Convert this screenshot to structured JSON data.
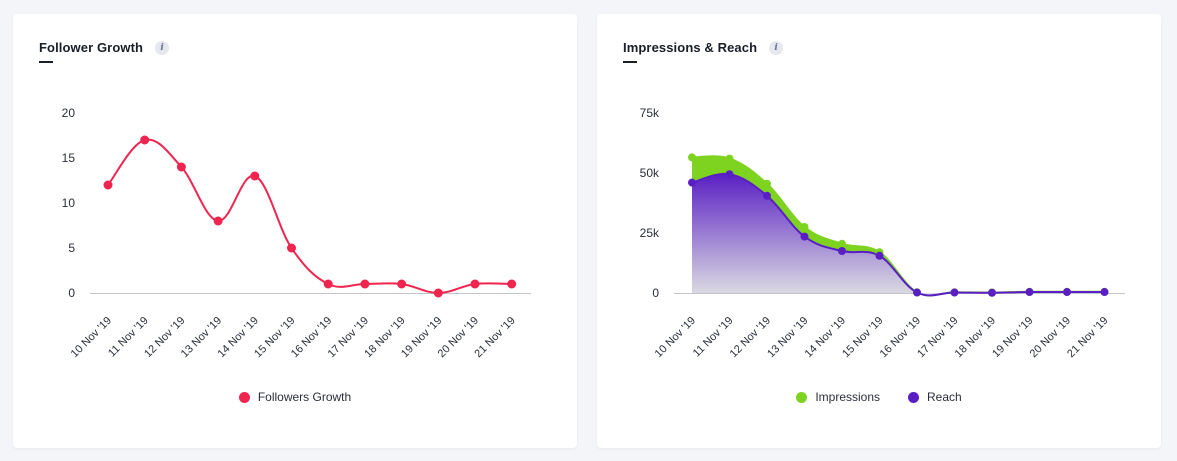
{
  "colors": {
    "followers": "#f0254f",
    "impressions": "#7ed321",
    "reach": "#5a1fc4",
    "axis": "#c2c5cc"
  },
  "icons": {
    "info": "info-icon"
  },
  "cards": [
    {
      "title": "Follower Growth",
      "info_glyph": "i"
    },
    {
      "title": "Impressions & Reach",
      "info_glyph": "i"
    }
  ],
  "chart_data": [
    {
      "type": "line",
      "title": "Follower Growth",
      "categories": [
        "10 Nov '19",
        "11 Nov '19",
        "12 Nov '19",
        "13 Nov '19",
        "14 Nov '19",
        "15 Nov '19",
        "16 Nov '19",
        "17 Nov '19",
        "18 Nov '19",
        "19 Nov '19",
        "20 Nov '19",
        "21 Nov '19"
      ],
      "series": [
        {
          "name": "Followers Growth",
          "values": [
            12,
            17,
            14,
            8,
            13,
            5,
            1,
            1,
            1,
            0,
            1,
            1
          ]
        }
      ],
      "yticks": [
        "0",
        "5",
        "10",
        "15",
        "20"
      ],
      "ylim": [
        0,
        20
      ],
      "grid": false,
      "legend": "bottom-center"
    },
    {
      "type": "area",
      "title": "Impressions & Reach",
      "categories": [
        "10 Nov '19",
        "11 Nov '19",
        "12 Nov '19",
        "13 Nov '19",
        "14 Nov '19",
        "15 Nov '19",
        "16 Nov '19",
        "17 Nov '19",
        "18 Nov '19",
        "19 Nov '19",
        "20 Nov '19",
        "21 Nov '19"
      ],
      "series": [
        {
          "name": "Impressions",
          "values": [
            56500,
            56000,
            45500,
            27500,
            20500,
            17000,
            300,
            300,
            200,
            500,
            500,
            500
          ]
        },
        {
          "name": "Reach",
          "values": [
            46000,
            49500,
            40500,
            23500,
            17500,
            15500,
            200,
            200,
            100,
            400,
            400,
            400
          ]
        }
      ],
      "yticks": [
        "0",
        "25k",
        "50k",
        "75k"
      ],
      "ylim": [
        0,
        75000
      ],
      "grid": false,
      "legend": "bottom-center"
    }
  ]
}
